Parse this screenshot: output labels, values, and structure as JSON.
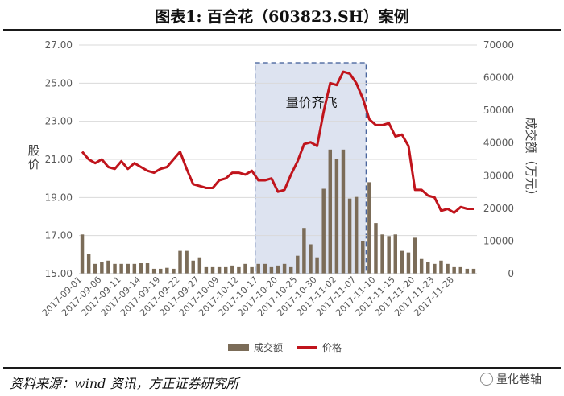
{
  "header": {
    "title": "图表1:  百合花（603823.SH）案例"
  },
  "footer": {
    "source": "资料来源：wind 资讯，方正证券研究所",
    "brand": "量化卷轴"
  },
  "icons": {
    "brand_icon": "wechat-brand-icon"
  },
  "colors": {
    "price_line": "#c0141c",
    "volume_bar": "#7b6c58",
    "highlight_fill": "#dde3f0",
    "highlight_border": "#3c5a96"
  },
  "chart_data": {
    "type": "bar-line-combo",
    "y_left": {
      "label": "股价",
      "ticks": [
        "15.00",
        "17.00",
        "19.00",
        "21.00",
        "23.00",
        "25.00",
        "27.00"
      ],
      "range": [
        15,
        27
      ]
    },
    "y_right": {
      "label": "成交额（万元）",
      "ticks": [
        "0",
        "10000",
        "20000",
        "30000",
        "40000",
        "50000",
        "60000",
        "70000"
      ],
      "range": [
        0,
        70000
      ]
    },
    "x_ticks": [
      "2017-09-01",
      "2017-09-06",
      "2017-09-11",
      "2017-09-14",
      "2017-09-19",
      "2017-09-22",
      "2017-09-27",
      "2017-10-09",
      "2017-10-12",
      "2017-10-17",
      "2017-10-20",
      "2017-10-25",
      "2017-10-30",
      "2017-11-02",
      "2017-11-07",
      "2017-11-10",
      "2017-11-15",
      "2017-11-20",
      "2017-11-23",
      "2017-11-28"
    ],
    "volume": [
      12000,
      6000,
      3000,
      3500,
      4000,
      3000,
      3000,
      3000,
      3000,
      3200,
      3200,
      1500,
      1500,
      1800,
      1500,
      7000,
      7000,
      4000,
      5000,
      2000,
      2000,
      2000,
      2000,
      2500,
      2000,
      3000,
      2000,
      3000,
      3000,
      2000,
      2500,
      3000,
      2000,
      5500,
      14000,
      9000,
      5000,
      26000,
      38000,
      35000,
      38000,
      23000,
      23500,
      10000,
      28000,
      15500,
      12000,
      11500,
      12000,
      7000,
      6500,
      11000,
      4500,
      3500,
      3000,
      4000,
      3000,
      2000,
      2000,
      1500,
      1500
    ],
    "price": [
      21.4,
      21.0,
      20.8,
      21.0,
      20.6,
      20.5,
      20.9,
      20.5,
      20.8,
      20.6,
      20.4,
      20.3,
      20.5,
      20.6,
      21.0,
      21.4,
      20.5,
      19.7,
      19.6,
      19.5,
      19.5,
      19.9,
      20.0,
      20.3,
      20.3,
      20.2,
      20.4,
      19.9,
      19.9,
      20.0,
      19.3,
      19.4,
      20.2,
      20.9,
      21.8,
      21.9,
      21.7,
      23.5,
      25.0,
      24.9,
      25.6,
      25.5,
      25.0,
      24.2,
      23.1,
      22.8,
      22.8,
      22.9,
      22.2,
      22.3,
      21.7,
      19.4,
      19.4,
      19.1,
      19.0,
      18.3,
      18.4,
      18.2,
      18.5,
      18.4,
      18.4
    ],
    "highlight": {
      "label": "量价齐飞",
      "from_index": 27,
      "to_index": 43
    },
    "legend": {
      "position": "bottom",
      "items": [
        {
          "name": "成交额",
          "kind": "bar"
        },
        {
          "name": "价格",
          "kind": "line"
        }
      ]
    }
  }
}
